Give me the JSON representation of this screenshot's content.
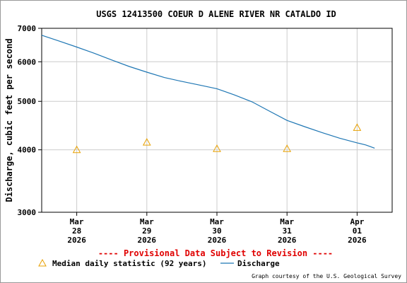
{
  "chart_data": {
    "type": "line",
    "title": "USGS 12413500 COEUR D ALENE RIVER NR CATALDO ID",
    "ylabel": "Discharge, cubic feet per second",
    "xlabel": "",
    "y_scale": "log",
    "ylim": [
      3000,
      7000
    ],
    "yticks": [
      {
        "value": 3000,
        "label": "3000"
      },
      {
        "value": 4000,
        "label": "4000"
      },
      {
        "value": 5000,
        "label": "5000"
      },
      {
        "value": 6000,
        "label": "6000"
      },
      {
        "value": 7000,
        "label": "7000"
      }
    ],
    "xlim": [
      "2026-03-27T12:00",
      "2026-04-01T12:00"
    ],
    "xticks": [
      {
        "x": "2026-03-28T00:00",
        "label": [
          "Mar",
          "28",
          "2026"
        ]
      },
      {
        "x": "2026-03-29T00:00",
        "label": [
          "Mar",
          "29",
          "2026"
        ]
      },
      {
        "x": "2026-03-30T00:00",
        "label": [
          "Mar",
          "30",
          "2026"
        ]
      },
      {
        "x": "2026-03-31T00:00",
        "label": [
          "Mar",
          "31",
          "2026"
        ]
      },
      {
        "x": "2026-04-01T00:00",
        "label": [
          "Apr",
          "01",
          "2026"
        ]
      }
    ],
    "grid": true,
    "notice": "---- Provisional Data Subject to Revision ----",
    "credit": "Graph courtesy of the U.S. Geological Survey",
    "legend_position": "bottom",
    "series": [
      {
        "name": "Discharge",
        "color": "#1f77b4",
        "style": "line",
        "points": [
          [
            "2026-03-27T12:00",
            6780
          ],
          [
            "2026-03-27T18:00",
            6600
          ],
          [
            "2026-03-28T00:00",
            6420
          ],
          [
            "2026-03-28T06:00",
            6240
          ],
          [
            "2026-03-28T12:00",
            6050
          ],
          [
            "2026-03-28T18:00",
            5870
          ],
          [
            "2026-03-29T00:00",
            5720
          ],
          [
            "2026-03-29T06:00",
            5580
          ],
          [
            "2026-03-29T12:00",
            5480
          ],
          [
            "2026-03-29T18:00",
            5390
          ],
          [
            "2026-03-30T00:00",
            5300
          ],
          [
            "2026-03-30T06:00",
            5150
          ],
          [
            "2026-03-30T12:00",
            4990
          ],
          [
            "2026-03-30T18:00",
            4780
          ],
          [
            "2026-03-31T00:00",
            4580
          ],
          [
            "2026-03-31T06:00",
            4450
          ],
          [
            "2026-03-31T12:00",
            4330
          ],
          [
            "2026-03-31T18:00",
            4220
          ],
          [
            "2026-04-01T00:00",
            4130
          ],
          [
            "2026-04-01T03:00",
            4090
          ],
          [
            "2026-04-01T06:00",
            4030
          ]
        ]
      },
      {
        "name": "Median daily statistic (92 years)",
        "color": "#e8a000",
        "style": "triangle",
        "points": [
          [
            "2026-03-28T00:00",
            4000
          ],
          [
            "2026-03-29T00:00",
            4140
          ],
          [
            "2026-03-30T00:00",
            4020
          ],
          [
            "2026-03-31T00:00",
            4020
          ],
          [
            "2026-04-01T00:00",
            4430
          ]
        ]
      }
    ]
  }
}
